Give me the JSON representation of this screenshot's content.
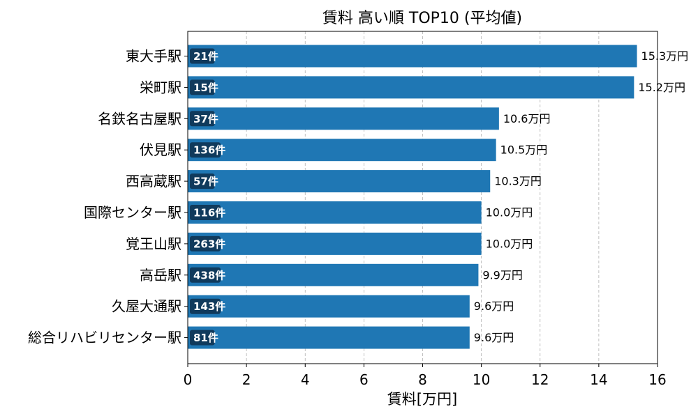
{
  "chart_data": {
    "type": "bar",
    "orientation": "horizontal",
    "title": "賃料 高い順 TOP10 (平均値)",
    "xlabel": "賃料[万円]",
    "ylabel": "",
    "xlim": [
      0,
      16
    ],
    "xticks": [
      0,
      2,
      4,
      6,
      8,
      10,
      12,
      14,
      16
    ],
    "grid": "x-dashed",
    "bar_color": "#1f77b4",
    "badge_color": "#103a5c",
    "categories": [
      "東大手駅",
      "栄町駅",
      "名鉄名古屋駅",
      "伏見駅",
      "西高蔵駅",
      "国際センター駅",
      "覚王山駅",
      "高岳駅",
      "久屋大通駅",
      "総合リハビリセンター駅"
    ],
    "values": [
      15.3,
      15.2,
      10.6,
      10.5,
      10.3,
      10.0,
      10.0,
      9.9,
      9.6,
      9.6
    ],
    "value_labels": [
      "15.3万円",
      "15.2万円",
      "10.6万円",
      "10.5万円",
      "10.3万円",
      "10.0万円",
      "10.0万円",
      "9.9万円",
      "9.6万円",
      "9.6万円"
    ],
    "count_labels": [
      "21件",
      "15件",
      "37件",
      "136件",
      "57件",
      "116件",
      "263件",
      "438件",
      "143件",
      "81件"
    ]
  }
}
